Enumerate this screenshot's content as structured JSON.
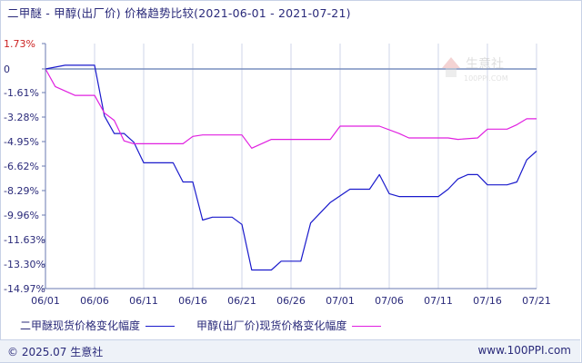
{
  "title": "二甲醚 - 甲醇(出厂价) 价格趋势比较(2021-06-01 - 2021-07-21)",
  "watermark": {
    "brand": "生意社",
    "url": "100PPI.COM"
  },
  "footer": {
    "copyright": "© 2025.07 生意社",
    "website": "www.100PPI.com"
  },
  "colors": {
    "series1": "#1a1acc",
    "series2": "#e020e0",
    "axis": "#6a7ab0",
    "text": "#2a2a7a",
    "grid": "#cfd6e8",
    "zero_line": "#7a8fbf"
  },
  "chart_data": {
    "type": "line",
    "title": "二甲醚 - 甲醇(出厂价) 价格趋势比较(2021-06-01 - 2021-07-21)",
    "y_ticks": [
      "1.73%",
      "0",
      "-1.61%",
      "-3.28%",
      "-4.95%",
      "-6.62%",
      "-8.29%",
      "-9.96%",
      "-11.63%",
      "-13.30%",
      "-14.97%"
    ],
    "y_tick_values": [
      1.73,
      0,
      -1.61,
      -3.28,
      -4.95,
      -6.62,
      -8.29,
      -9.96,
      -11.63,
      -13.3,
      -14.97
    ],
    "ylim": [
      -14.97,
      1.73
    ],
    "x_ticks": [
      "06/01",
      "06/06",
      "06/11",
      "06/16",
      "06/21",
      "06/26",
      "07/01",
      "07/06",
      "07/11",
      "07/16",
      "07/21"
    ],
    "x_tick_values": [
      "2021-06-01",
      "2021-06-06",
      "2021-06-11",
      "2021-06-16",
      "2021-06-21",
      "2021-06-26",
      "2021-07-01",
      "2021-07-06",
      "2021-07-11",
      "2021-07-16",
      "2021-07-21"
    ],
    "xlim": [
      "2021-06-01",
      "2021-07-21"
    ],
    "grid": "vertical",
    "legend_position": "bottom",
    "series": [
      {
        "name": "二甲醚现货价格变化幅度",
        "points": [
          [
            "2021-06-01",
            0
          ],
          [
            "2021-06-03",
            0.25
          ],
          [
            "2021-06-06",
            0.25
          ],
          [
            "2021-06-07",
            -3.2
          ],
          [
            "2021-06-08",
            -4.4
          ],
          [
            "2021-06-09",
            -4.4
          ],
          [
            "2021-06-10",
            -5.0
          ],
          [
            "2021-06-11",
            -6.4
          ],
          [
            "2021-06-14",
            -6.4
          ],
          [
            "2021-06-15",
            -7.7
          ],
          [
            "2021-06-16",
            -7.7
          ],
          [
            "2021-06-17",
            -10.3
          ],
          [
            "2021-06-18",
            -10.1
          ],
          [
            "2021-06-20",
            -10.1
          ],
          [
            "2021-06-21",
            -10.6
          ],
          [
            "2021-06-22",
            -13.7
          ],
          [
            "2021-06-24",
            -13.7
          ],
          [
            "2021-06-25",
            -13.1
          ],
          [
            "2021-06-27",
            -13.1
          ],
          [
            "2021-06-28",
            -10.5
          ],
          [
            "2021-06-30",
            -9.1
          ],
          [
            "2021-07-02",
            -8.2
          ],
          [
            "2021-07-04",
            -8.2
          ],
          [
            "2021-07-05",
            -7.2
          ],
          [
            "2021-07-06",
            -8.5
          ],
          [
            "2021-07-07",
            -8.7
          ],
          [
            "2021-07-11",
            -8.7
          ],
          [
            "2021-07-12",
            -8.2
          ],
          [
            "2021-07-13",
            -7.5
          ],
          [
            "2021-07-14",
            -7.2
          ],
          [
            "2021-07-15",
            -7.2
          ],
          [
            "2021-07-16",
            -7.9
          ],
          [
            "2021-07-18",
            -7.9
          ],
          [
            "2021-07-19",
            -7.7
          ],
          [
            "2021-07-20",
            -6.2
          ],
          [
            "2021-07-21",
            -5.6
          ]
        ]
      },
      {
        "name": "甲醇(出厂价)现货价格变化幅度",
        "points": [
          [
            "2021-06-01",
            0
          ],
          [
            "2021-06-02",
            -1.2
          ],
          [
            "2021-06-04",
            -1.8
          ],
          [
            "2021-06-06",
            -1.8
          ],
          [
            "2021-06-07",
            -3.0
          ],
          [
            "2021-06-08",
            -3.5
          ],
          [
            "2021-06-09",
            -4.9
          ],
          [
            "2021-06-10",
            -5.1
          ],
          [
            "2021-06-15",
            -5.1
          ],
          [
            "2021-06-16",
            -4.6
          ],
          [
            "2021-06-17",
            -4.5
          ],
          [
            "2021-06-21",
            -4.5
          ],
          [
            "2021-06-22",
            -5.4
          ],
          [
            "2021-06-23",
            -5.1
          ],
          [
            "2021-06-24",
            -4.8
          ],
          [
            "2021-06-30",
            -4.8
          ],
          [
            "2021-07-01",
            -3.9
          ],
          [
            "2021-07-05",
            -3.9
          ],
          [
            "2021-07-07",
            -4.4
          ],
          [
            "2021-07-08",
            -4.7
          ],
          [
            "2021-07-12",
            -4.7
          ],
          [
            "2021-07-13",
            -4.8
          ],
          [
            "2021-07-15",
            -4.7
          ],
          [
            "2021-07-16",
            -4.1
          ],
          [
            "2021-07-18",
            -4.1
          ],
          [
            "2021-07-19",
            -3.8
          ],
          [
            "2021-07-20",
            -3.4
          ],
          [
            "2021-07-21",
            -3.4
          ]
        ]
      }
    ]
  }
}
